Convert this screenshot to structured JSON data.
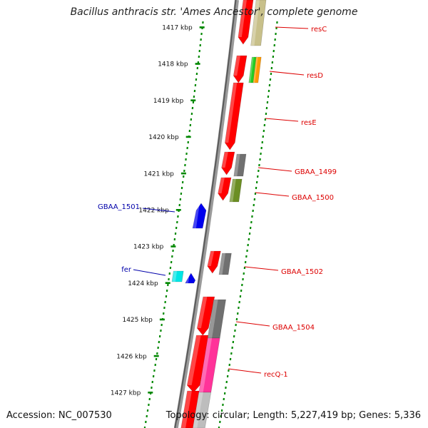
{
  "title": "Bacillus anthracis str. 'Ames Ancestor', complete genome",
  "footer": {
    "accession_label": "Accession:",
    "accession": "NC_007530",
    "topology_label": "Topology:",
    "topology": "circular",
    "length_label": "Length:",
    "length": "5,227,419 bp",
    "genes_label": "Genes:",
    "genes": "5,336"
  },
  "ticks": [
    {
      "label": "1417 kbp"
    },
    {
      "label": "1418 kbp"
    },
    {
      "label": "1419 kbp"
    },
    {
      "label": "1420 kbp"
    },
    {
      "label": "1421 kbp"
    },
    {
      "label": "1422 kbp"
    },
    {
      "label": "1423 kbp"
    },
    {
      "label": "1424 kbp"
    },
    {
      "label": "1425 kbp"
    },
    {
      "label": "1426 kbp"
    },
    {
      "label": "1427 kbp"
    }
  ],
  "gene_labels": [
    {
      "name": "resC",
      "color": "#dd0000"
    },
    {
      "name": "resD",
      "color": "#dd0000"
    },
    {
      "name": "resE",
      "color": "#dd0000"
    },
    {
      "name": "GBAA_1499",
      "color": "#dd0000"
    },
    {
      "name": "GBAA_1500",
      "color": "#dd0000"
    },
    {
      "name": "GBAA_1502",
      "color": "#dd0000"
    },
    {
      "name": "GBAA_1504",
      "color": "#dd0000"
    },
    {
      "name": "recQ-1",
      "color": "#dd0000"
    },
    {
      "name": "GBAA_1501",
      "color": "#0000aa"
    },
    {
      "name": "fer",
      "color": "#0000aa"
    }
  ],
  "colors": {
    "forward_cds": "#ff0000",
    "reverse_cds": "#0000ee",
    "tick_dots": "#008800",
    "backbone": "#808080",
    "khaki": "#c8c08a",
    "gray": "#707070",
    "olive": "#6b8e23",
    "green": "#22cc22",
    "orange": "#ff9900",
    "magenta": "#ff3399",
    "cyan": "#00e5e5"
  }
}
